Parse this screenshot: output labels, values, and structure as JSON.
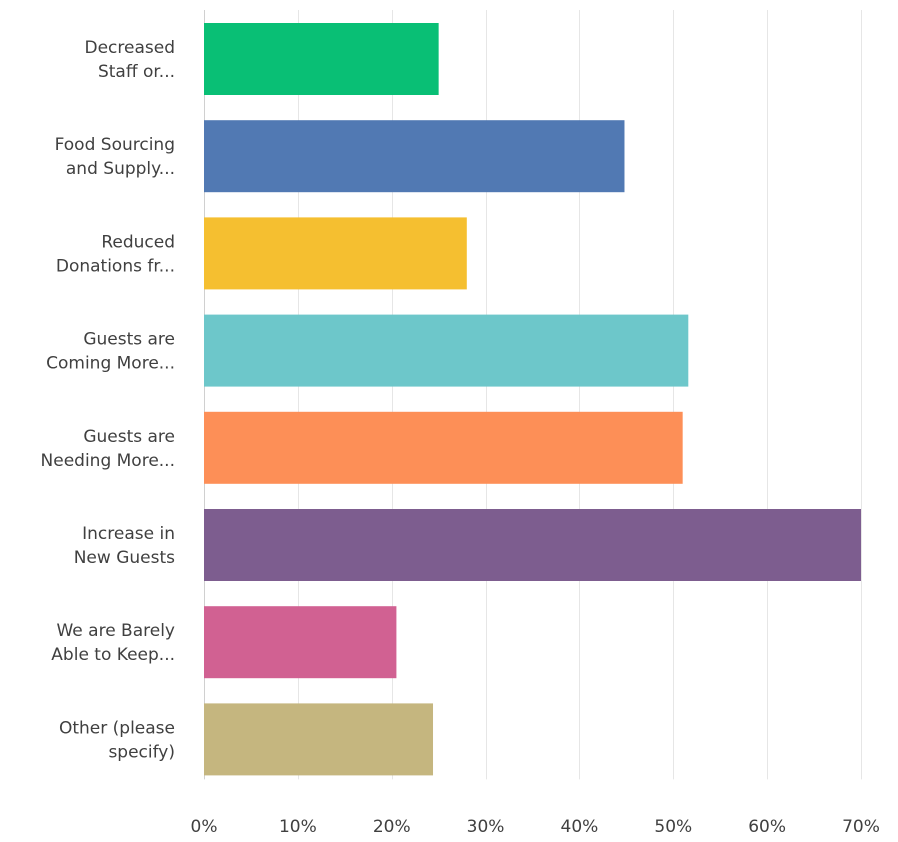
{
  "chart_data": {
    "type": "bar",
    "orientation": "horizontal",
    "categories": [
      [
        "Decreased",
        "Staff or..."
      ],
      [
        "Food Sourcing",
        "and Supply..."
      ],
      [
        "Reduced",
        "Donations fr..."
      ],
      [
        "Guests are",
        "Coming More..."
      ],
      [
        "Guests are",
        "Needing More..."
      ],
      [
        "Increase in",
        "New Guests"
      ],
      [
        "We are Barely",
        "Able to Keep..."
      ],
      [
        "Other (please",
        "specify)"
      ]
    ],
    "values": [
      25.0,
      44.8,
      28.0,
      51.6,
      51.0,
      70.0,
      20.5,
      24.4
    ],
    "colors": [
      "#09bf75",
      "#5179b3",
      "#f5bf30",
      "#6dc7ca",
      "#fd8f57",
      "#7d5d8f",
      "#d16192",
      "#c5b67f"
    ],
    "xlim": [
      0,
      70
    ],
    "xticks": [
      "0%",
      "10%",
      "20%",
      "30%",
      "40%",
      "50%",
      "60%",
      "70%"
    ],
    "grid": true,
    "title": "",
    "xlabel": "",
    "ylabel": ""
  }
}
